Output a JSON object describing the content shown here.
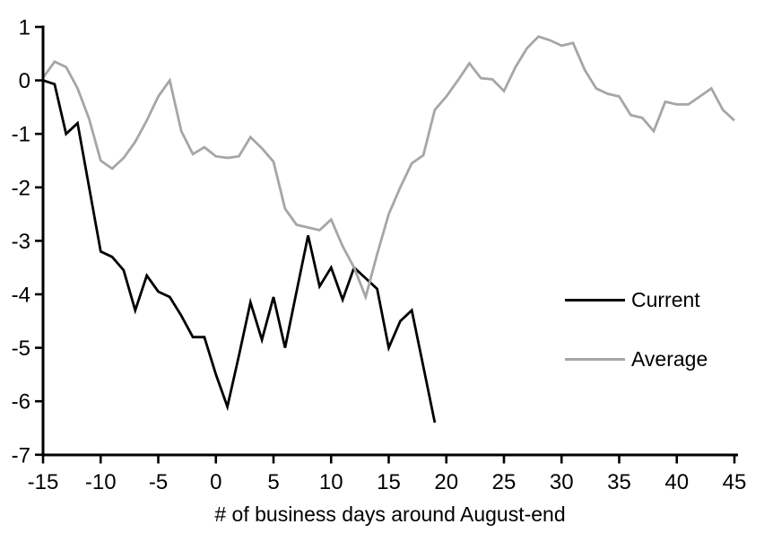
{
  "chart_data": {
    "type": "line",
    "title": "",
    "xlabel": "# of business days around August-end",
    "ylabel": "",
    "xlim": [
      -15,
      45
    ],
    "ylim": [
      -7,
      1
    ],
    "xticks": [
      -15,
      -10,
      -5,
      0,
      5,
      10,
      15,
      20,
      25,
      30,
      35,
      40,
      45
    ],
    "yticks": [
      1,
      0,
      -1,
      -2,
      -3,
      -4,
      -5,
      -6,
      -7
    ],
    "grid": false,
    "legend_position": "middle-right",
    "axis_color": "#000000",
    "series": [
      {
        "name": "Current",
        "color": "#000000",
        "line_width": 2.8,
        "x_start": -15,
        "x_step": 1,
        "values": [
          0.0,
          -0.07,
          -1.0,
          -0.8,
          -2.0,
          -3.2,
          -3.3,
          -3.55,
          -4.3,
          -3.65,
          -3.95,
          -4.05,
          -4.4,
          -4.8,
          -4.8,
          -5.5,
          -6.1,
          -5.15,
          -4.15,
          -4.85,
          -4.05,
          -5.0,
          -3.95,
          -2.9,
          -3.85,
          -3.5,
          -4.1,
          -3.5,
          -3.7,
          -3.9,
          -5.0,
          -4.5,
          -4.3,
          -5.35,
          -6.4
        ]
      },
      {
        "name": "Average",
        "color": "#a6a6a6",
        "line_width": 2.8,
        "x_start": -15,
        "x_step": 1,
        "values": [
          0.05,
          0.35,
          0.25,
          -0.15,
          -0.72,
          -1.5,
          -1.65,
          -1.45,
          -1.15,
          -0.75,
          -0.3,
          0.0,
          -0.95,
          -1.38,
          -1.25,
          -1.42,
          -1.45,
          -1.42,
          -1.06,
          -1.27,
          -1.52,
          -2.4,
          -2.7,
          -2.75,
          -2.8,
          -2.6,
          -3.1,
          -3.5,
          -4.05,
          -3.25,
          -2.5,
          -2.0,
          -1.55,
          -1.4,
          -0.55,
          -0.3,
          0.0,
          0.32,
          0.04,
          0.02,
          -0.2,
          0.25,
          0.6,
          0.82,
          0.75,
          0.65,
          0.7,
          0.2,
          -0.15,
          -0.25,
          -0.3,
          -0.65,
          -0.7,
          -0.95,
          -0.4,
          -0.45,
          -0.45,
          -0.3,
          -0.15,
          -0.55,
          -0.75
        ]
      }
    ]
  }
}
